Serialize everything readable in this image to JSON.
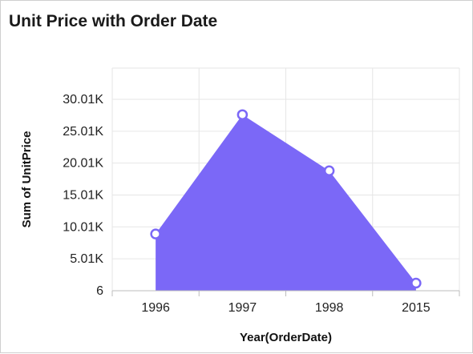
{
  "title": "Unit Price with Order Date",
  "chart_data": {
    "type": "area",
    "title": "Unit Price with Order Date",
    "xlabel": "Year(OrderDate)",
    "ylabel": "Sum of UnitPrice",
    "categories": [
      "1996",
      "1997",
      "1998",
      "2015"
    ],
    "series": [
      {
        "values": [
          8900,
          27600,
          18800,
          1200
        ]
      }
    ],
    "yticks": [
      "6",
      "5.01K",
      "10.01K",
      "15.01K",
      "20.01K",
      "25.01K",
      "30.01K"
    ],
    "ytick_values": [
      6,
      5010,
      10010,
      15010,
      20010,
      25010,
      30010
    ],
    "ylim": [
      6,
      30010
    ],
    "grid": true,
    "colors": {
      "area": "#7b68f7",
      "marker_stroke": "#7b68f7",
      "marker_fill": "#ffffff",
      "grid": "#e6e6e6"
    }
  }
}
